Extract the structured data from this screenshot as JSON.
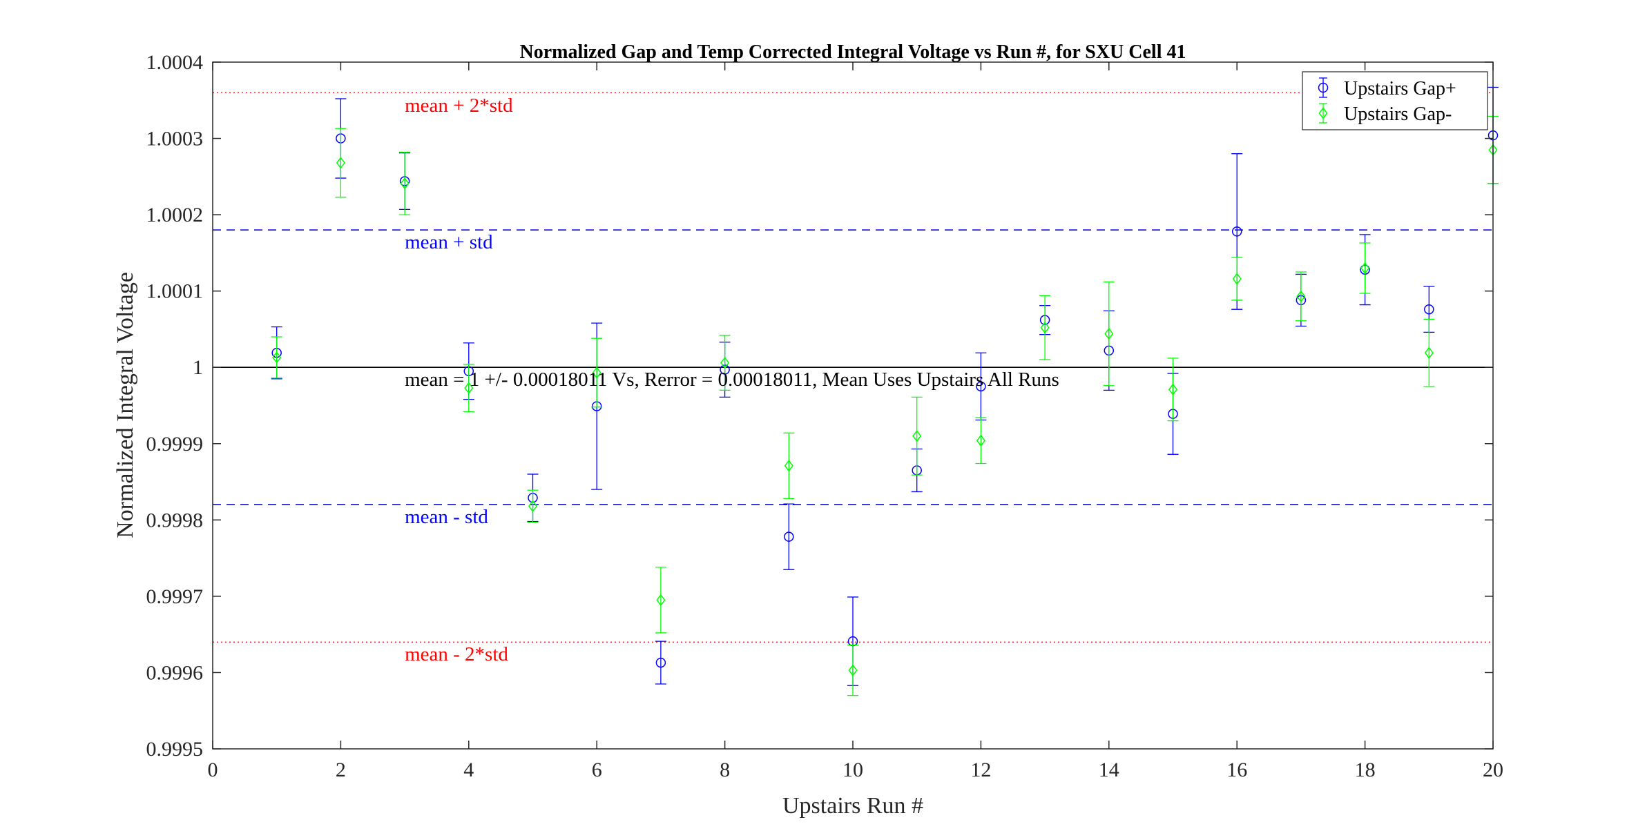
{
  "chart_data": {
    "type": "scatter",
    "title": "Normalized Gap and Temp Corrected Integral Voltage vs Run #, for SXU Cell 41",
    "xlabel": "Upstairs Run #",
    "ylabel": "Normalized Integral Voltage",
    "xlim": [
      0,
      20
    ],
    "ylim": [
      0.9995,
      1.0004
    ],
    "xticks": [
      0,
      2,
      4,
      6,
      8,
      10,
      12,
      14,
      16,
      18,
      20
    ],
    "xtick_labels": [
      "0",
      "2",
      "4",
      "6",
      "8",
      "10",
      "12",
      "14",
      "16",
      "18",
      "20"
    ],
    "yticks": [
      0.9995,
      0.9996,
      0.9997,
      0.9998,
      0.9999,
      1.0,
      1.0001,
      1.0002,
      1.0003,
      1.0004
    ],
    "ytick_labels": [
      "0.9995",
      "0.9996",
      "0.9997",
      "0.9998",
      "0.9999",
      "1",
      "1.0001",
      "1.0002",
      "1.0003",
      "1.0004"
    ],
    "grid": false,
    "legend_position": "top-right",
    "series": [
      {
        "name": "Upstairs Gap+",
        "color": "#0000ff",
        "marker": "circle",
        "x": [
          1,
          2,
          3,
          4,
          5,
          6,
          7,
          8,
          9,
          10,
          11,
          12,
          13,
          14,
          15,
          16,
          17,
          18,
          19,
          20
        ],
        "y": [
          1.000019,
          1.0003,
          1.000244,
          0.999995,
          0.999829,
          0.999949,
          0.999613,
          0.999997,
          0.999778,
          0.999641,
          0.999865,
          0.999975,
          1.000062,
          1.000022,
          0.999939,
          1.000178,
          1.000088,
          1.000128,
          1.000076,
          1.000304
        ],
        "err": [
          3.4e-05,
          5.2e-05,
          3.7e-05,
          3.7e-05,
          3.1e-05,
          0.000109,
          2.8e-05,
          3.6e-05,
          4.3e-05,
          5.8e-05,
          2.8e-05,
          4.4e-05,
          1.9e-05,
          5.2e-05,
          5.3e-05,
          0.000102,
          3.4e-05,
          4.6e-05,
          3e-05,
          6.3e-05
        ]
      },
      {
        "name": "Upstairs Gap-",
        "color": "#00ff00",
        "marker": "diamond",
        "x": [
          1,
          2,
          3,
          4,
          5,
          6,
          7,
          8,
          9,
          10,
          11,
          12,
          13,
          14,
          15,
          16,
          17,
          18,
          19,
          20
        ],
        "y": [
          1.000013,
          1.000268,
          1.000241,
          0.999973,
          0.999818,
          0.999993,
          0.999695,
          1.000006,
          0.999871,
          0.999603,
          0.99991,
          0.999904,
          1.000052,
          1.000044,
          0.999971,
          1.000116,
          1.000093,
          1.00013,
          1.000019,
          1.000285
        ],
        "err": [
          2.7e-05,
          4.5e-05,
          4.1e-05,
          3.1e-05,
          2.1e-05,
          4.5e-05,
          4.3e-05,
          3.6e-05,
          4.3e-05,
          3.3e-05,
          5.1e-05,
          3e-05,
          4.2e-05,
          6.8e-05,
          4.1e-05,
          2.8e-05,
          3.2e-05,
          3.3e-05,
          4.4e-05,
          4.4e-05
        ]
      }
    ],
    "reference_lines": [
      {
        "y": 1.00036,
        "style": "dotted",
        "color": "#ff0000",
        "label": "mean + 2*std"
      },
      {
        "y": 1.00018,
        "style": "dashed",
        "color": "#0000ff",
        "label": "mean + std"
      },
      {
        "y": 1.0,
        "style": "solid",
        "color": "#000000",
        "label": "mean = 1 +/- 0.00018011 Vs, Rerror = 0.00018011, Mean Uses Upstairs All Runs"
      },
      {
        "y": 0.99982,
        "style": "dashed",
        "color": "#0000ff",
        "label": "mean - std"
      },
      {
        "y": 0.99964,
        "style": "dotted",
        "color": "#ff0000",
        "label": "mean - 2*std"
      }
    ]
  }
}
